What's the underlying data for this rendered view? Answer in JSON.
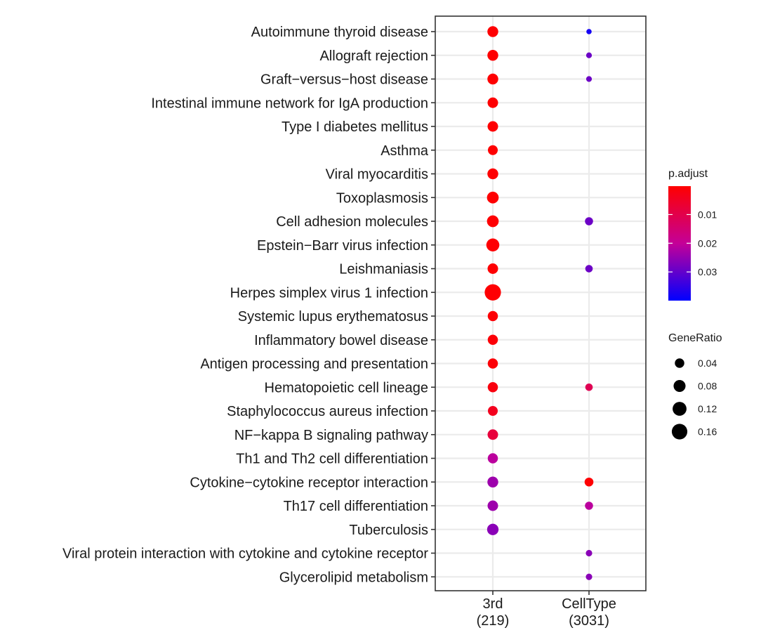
{
  "chart_data": {
    "type": "scatter",
    "terms": [
      "Autoimmune thyroid disease",
      "Allograft rejection",
      "Graft−versus−host disease",
      "Intestinal immune network for IgA production",
      "Type I diabetes mellitus",
      "Asthma",
      "Viral myocarditis",
      "Toxoplasmosis",
      "Cell adhesion molecules",
      "Epstein−Barr virus infection",
      "Leishmaniasis",
      "Herpes simplex virus 1 infection",
      "Systemic lupus erythematosus",
      "Inflammatory bowel disease",
      "Antigen processing and presentation",
      "Hematopoietic cell lineage",
      "Staphylococcus aureus infection",
      "NF−kappa B signaling pathway",
      "Th1 and Th2 cell differentiation",
      "Cytokine−cytokine receptor interaction",
      "Th17 cell differentiation",
      "Tuberculosis",
      "Viral protein interaction with cytokine and cytokine receptor",
      "Glycerolipid metabolism"
    ],
    "groups": [
      {
        "label": "3rd",
        "count": "(219)"
      },
      {
        "label": "CellType",
        "count": "(3031)"
      }
    ],
    "points": [
      {
        "term": 0,
        "group": 0,
        "gene_ratio": 0.06,
        "p_adjust": 0.0003
      },
      {
        "term": 1,
        "group": 0,
        "gene_ratio": 0.06,
        "p_adjust": 0.0003
      },
      {
        "term": 2,
        "group": 0,
        "gene_ratio": 0.06,
        "p_adjust": 0.0003
      },
      {
        "term": 3,
        "group": 0,
        "gene_ratio": 0.055,
        "p_adjust": 0.0003
      },
      {
        "term": 4,
        "group": 0,
        "gene_ratio": 0.055,
        "p_adjust": 0.0003
      },
      {
        "term": 5,
        "group": 0,
        "gene_ratio": 0.045,
        "p_adjust": 0.0003
      },
      {
        "term": 6,
        "group": 0,
        "gene_ratio": 0.06,
        "p_adjust": 0.0003
      },
      {
        "term": 7,
        "group": 0,
        "gene_ratio": 0.075,
        "p_adjust": 0.0003
      },
      {
        "term": 8,
        "group": 0,
        "gene_ratio": 0.075,
        "p_adjust": 0.0005
      },
      {
        "term": 9,
        "group": 0,
        "gene_ratio": 0.1,
        "p_adjust": 0.0005
      },
      {
        "term": 10,
        "group": 0,
        "gene_ratio": 0.055,
        "p_adjust": 0.0005
      },
      {
        "term": 11,
        "group": 0,
        "gene_ratio": 0.18,
        "p_adjust": 0.0005
      },
      {
        "term": 12,
        "group": 0,
        "gene_ratio": 0.05,
        "p_adjust": 0.0007
      },
      {
        "term": 13,
        "group": 0,
        "gene_ratio": 0.05,
        "p_adjust": 0.001
      },
      {
        "term": 14,
        "group": 0,
        "gene_ratio": 0.05,
        "p_adjust": 0.001
      },
      {
        "term": 15,
        "group": 0,
        "gene_ratio": 0.05,
        "p_adjust": 0.002
      },
      {
        "term": 16,
        "group": 0,
        "gene_ratio": 0.045,
        "p_adjust": 0.004
      },
      {
        "term": 17,
        "group": 0,
        "gene_ratio": 0.055,
        "p_adjust": 0.008
      },
      {
        "term": 18,
        "group": 0,
        "gene_ratio": 0.05,
        "p_adjust": 0.021
      },
      {
        "term": 19,
        "group": 0,
        "gene_ratio": 0.06,
        "p_adjust": 0.024
      },
      {
        "term": 20,
        "group": 0,
        "gene_ratio": 0.055,
        "p_adjust": 0.024
      },
      {
        "term": 21,
        "group": 0,
        "gene_ratio": 0.07,
        "p_adjust": 0.026
      },
      {
        "term": 0,
        "group": 1,
        "gene_ratio": 0.004,
        "p_adjust": 0.038
      },
      {
        "term": 1,
        "group": 1,
        "gene_ratio": 0.006,
        "p_adjust": 0.029
      },
      {
        "term": 2,
        "group": 1,
        "gene_ratio": 0.006,
        "p_adjust": 0.029
      },
      {
        "term": 8,
        "group": 1,
        "gene_ratio": 0.024,
        "p_adjust": 0.029
      },
      {
        "term": 10,
        "group": 1,
        "gene_ratio": 0.018,
        "p_adjust": 0.029
      },
      {
        "term": 15,
        "group": 1,
        "gene_ratio": 0.018,
        "p_adjust": 0.011
      },
      {
        "term": 19,
        "group": 1,
        "gene_ratio": 0.032,
        "p_adjust": 0.0005
      },
      {
        "term": 20,
        "group": 1,
        "gene_ratio": 0.024,
        "p_adjust": 0.021
      },
      {
        "term": 22,
        "group": 1,
        "gene_ratio": 0.01,
        "p_adjust": 0.026
      },
      {
        "term": 23,
        "group": 1,
        "gene_ratio": 0.01,
        "p_adjust": 0.026
      }
    ],
    "color_legend": {
      "title": "p.adjust",
      "ticks": [
        0.01,
        0.02,
        0.03
      ],
      "tick_labels": [
        "0.01",
        "0.02",
        "0.03"
      ],
      "range": [
        0.0001,
        0.04
      ],
      "low_color": "#FF0000",
      "high_color": "#0000FF"
    },
    "size_legend": {
      "title": "GeneRatio",
      "ticks": [
        0.04,
        0.08,
        0.12,
        0.16
      ],
      "tick_labels": [
        "0.04",
        "0.08",
        "0.12",
        "0.16"
      ],
      "range": [
        0.0,
        0.18
      ]
    },
    "grid": true,
    "legend_position": "right"
  }
}
